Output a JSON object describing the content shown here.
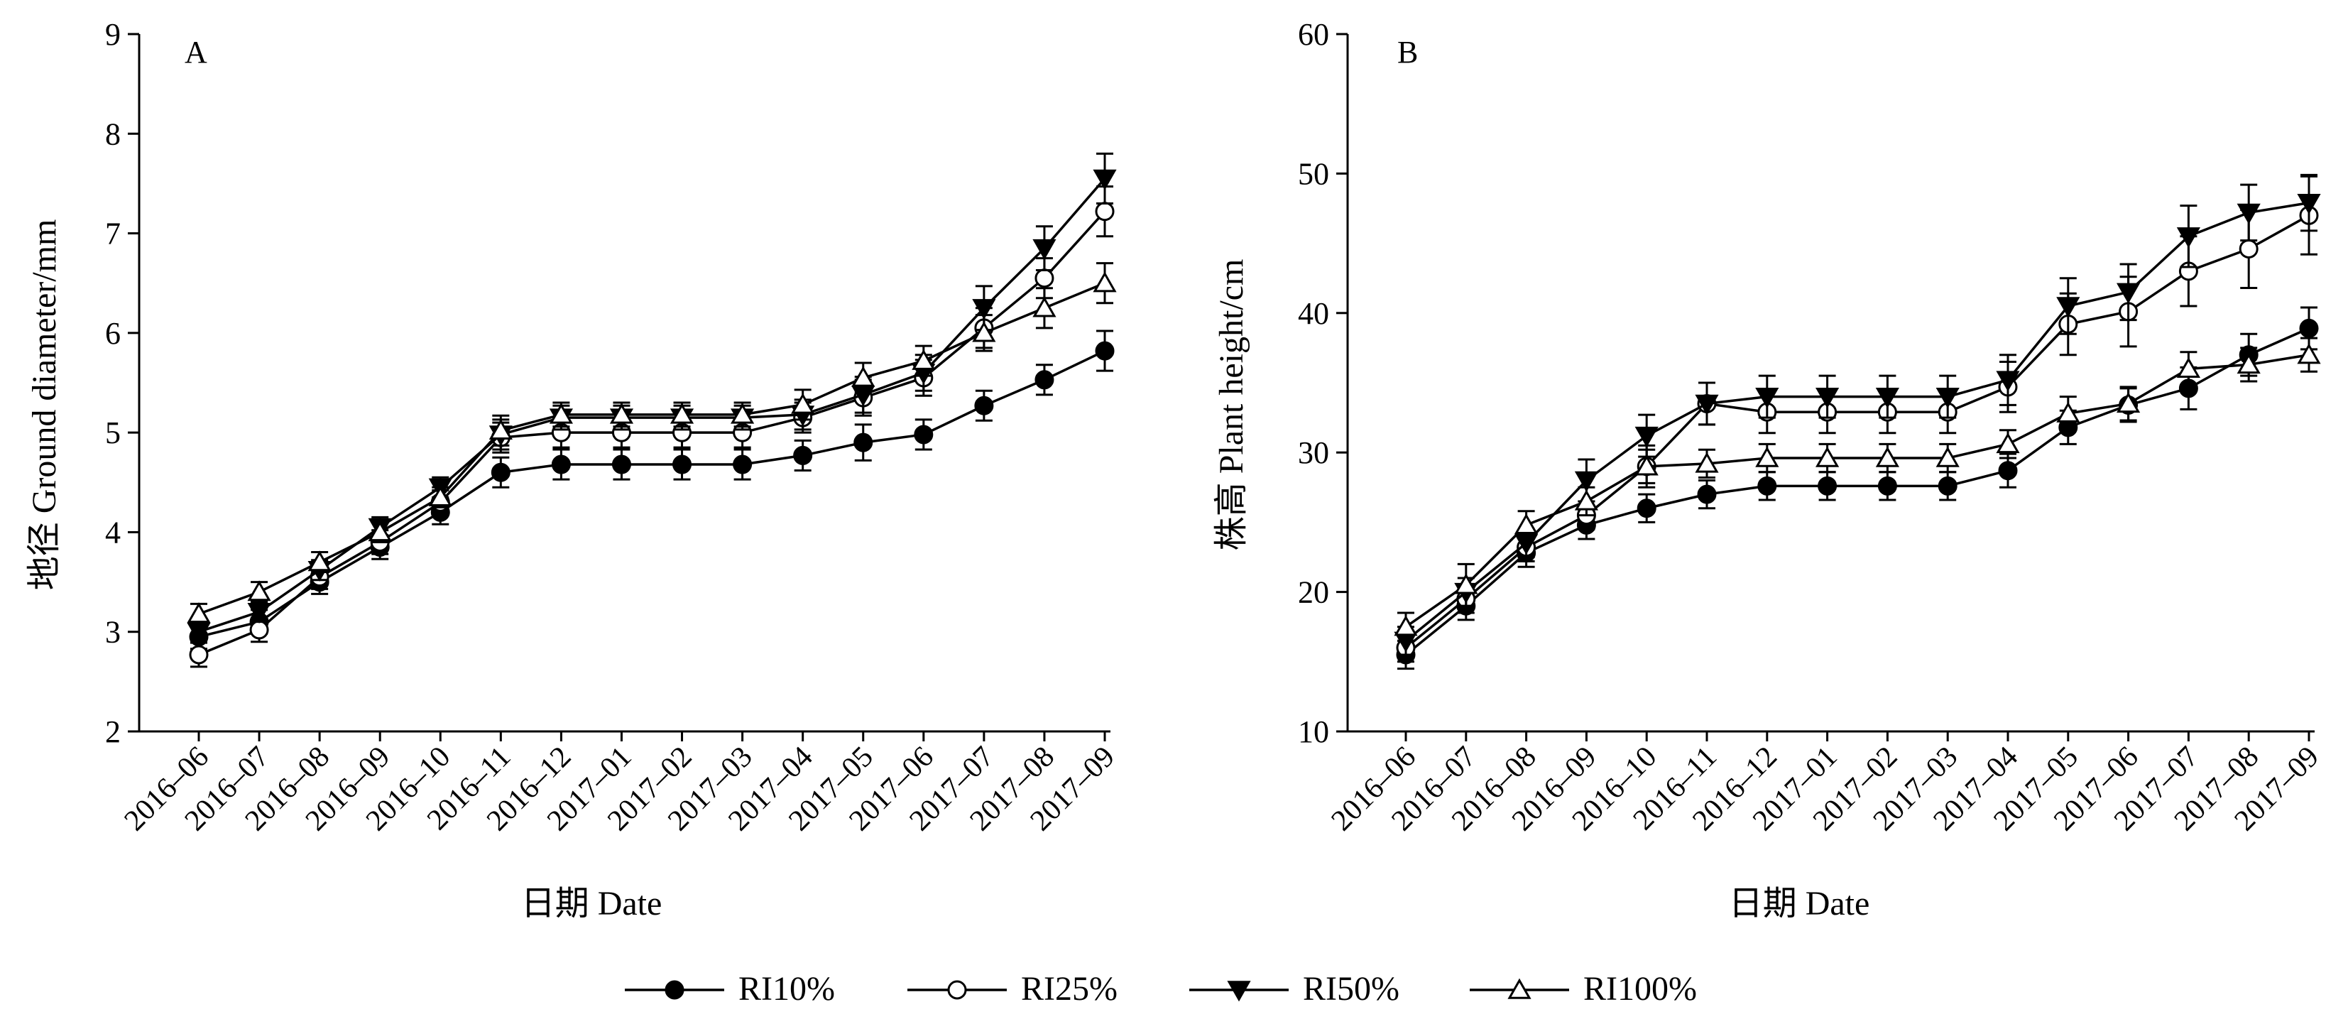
{
  "chart_data": [
    {
      "panel_label": "A",
      "type": "line",
      "xlabel": "日期  Date",
      "ylabel": "地径 Ground diameter/mm",
      "ylim": [
        2,
        9
      ],
      "yticks": [
        2,
        3,
        4,
        5,
        6,
        7,
        8,
        9
      ],
      "categories": [
        "2016–06",
        "2016–07",
        "2016–08",
        "2016–09",
        "2016–10",
        "2016–11",
        "2016–12",
        "2017–01",
        "2017–02",
        "2017–03",
        "2017–04",
        "2017–05",
        "2017–06",
        "2017–07",
        "2017–08",
        "2017–09"
      ],
      "series": [
        {
          "name": "RI10%",
          "marker": "circle-filled",
          "values": [
            2.95,
            3.1,
            3.5,
            3.85,
            4.2,
            4.6,
            4.68,
            4.68,
            4.68,
            4.68,
            4.77,
            4.9,
            4.98,
            5.27,
            5.53,
            5.82
          ],
          "errors": [
            0.12,
            0.12,
            0.12,
            0.12,
            0.12,
            0.15,
            0.15,
            0.15,
            0.15,
            0.15,
            0.15,
            0.18,
            0.15,
            0.15,
            0.15,
            0.2
          ]
        },
        {
          "name": "RI25%",
          "marker": "circle-open",
          "values": [
            2.77,
            3.02,
            3.55,
            3.9,
            4.3,
            4.95,
            5.0,
            5.0,
            5.0,
            5.0,
            5.15,
            5.35,
            5.55,
            6.05,
            6.55,
            7.22
          ],
          "errors": [
            0.12,
            0.12,
            0.12,
            0.12,
            0.12,
            0.15,
            0.15,
            0.15,
            0.15,
            0.15,
            0.15,
            0.18,
            0.18,
            0.2,
            0.2,
            0.25
          ]
        },
        {
          "name": "RI50%",
          "marker": "triangle-down-filled",
          "values": [
            3.0,
            3.2,
            3.62,
            4.05,
            4.45,
            4.98,
            5.15,
            5.15,
            5.15,
            5.15,
            5.18,
            5.38,
            5.6,
            6.25,
            6.85,
            7.55
          ],
          "errors": [
            0.1,
            0.1,
            0.1,
            0.1,
            0.1,
            0.15,
            0.12,
            0.12,
            0.12,
            0.12,
            0.15,
            0.18,
            0.18,
            0.22,
            0.22,
            0.25
          ]
        },
        {
          "name": "RI100%",
          "marker": "triangle-up-open",
          "values": [
            3.18,
            3.4,
            3.7,
            4.0,
            4.35,
            5.02,
            5.18,
            5.18,
            5.18,
            5.18,
            5.28,
            5.55,
            5.72,
            6.0,
            6.25,
            6.5
          ],
          "errors": [
            0.1,
            0.1,
            0.1,
            0.1,
            0.1,
            0.15,
            0.12,
            0.12,
            0.12,
            0.12,
            0.15,
            0.15,
            0.15,
            0.18,
            0.2,
            0.2
          ]
        }
      ]
    },
    {
      "panel_label": "B",
      "type": "line",
      "xlabel": "日期  Date",
      "ylabel": "株高 Plant height/cm",
      "ylim": [
        10,
        60
      ],
      "yticks": [
        10,
        20,
        30,
        40,
        50,
        60
      ],
      "categories": [
        "2016–06",
        "2016–07",
        "2016–08",
        "2016–09",
        "2016–10",
        "2016–11",
        "2016–12",
        "2017–01",
        "2017–02",
        "2017–03",
        "2017–04",
        "2017–05",
        "2017–06",
        "2017–07",
        "2017–08",
        "2017–09"
      ],
      "series": [
        {
          "name": "RI10%",
          "marker": "circle-filled",
          "values": [
            15.5,
            19.0,
            22.8,
            24.8,
            26.0,
            27.0,
            27.6,
            27.6,
            27.6,
            27.6,
            28.7,
            31.8,
            33.4,
            34.6,
            37.0,
            38.9
          ],
          "errors": [
            1.0,
            1.0,
            1.0,
            1.0,
            1.0,
            1.0,
            1.0,
            1.0,
            1.0,
            1.0,
            1.2,
            1.2,
            1.2,
            1.5,
            1.5,
            1.5
          ]
        },
        {
          "name": "RI25%",
          "marker": "circle-open",
          "values": [
            16.0,
            19.5,
            23.2,
            25.5,
            29.0,
            33.5,
            32.9,
            32.9,
            32.9,
            32.9,
            34.7,
            39.2,
            40.1,
            43.0,
            44.6,
            47.0
          ],
          "errors": [
            1.0,
            1.0,
            1.0,
            1.0,
            1.5,
            1.5,
            1.5,
            1.5,
            1.5,
            1.5,
            1.8,
            2.2,
            2.5,
            2.5,
            2.8,
            2.8
          ]
        },
        {
          "name": "RI50%",
          "marker": "triangle-down-filled",
          "values": [
            16.5,
            20.0,
            23.5,
            28.0,
            31.2,
            33.5,
            34.0,
            34.0,
            34.0,
            34.0,
            35.2,
            40.5,
            41.5,
            45.5,
            47.2,
            47.9
          ],
          "errors": [
            1.0,
            1.0,
            1.0,
            1.5,
            1.5,
            1.5,
            1.5,
            1.5,
            1.5,
            1.5,
            1.8,
            2.0,
            2.0,
            2.2,
            2.0,
            2.0
          ]
        },
        {
          "name": "RI100%",
          "marker": "triangle-up-open",
          "values": [
            17.5,
            20.5,
            24.8,
            26.5,
            29.0,
            29.2,
            29.6,
            29.6,
            29.6,
            29.6,
            30.6,
            32.8,
            33.5,
            36.0,
            36.3,
            37.0
          ],
          "errors": [
            1.0,
            1.5,
            1.0,
            1.0,
            1.2,
            1.0,
            1.0,
            1.0,
            1.0,
            1.0,
            1.0,
            1.2,
            1.2,
            1.2,
            1.2,
            1.2
          ]
        }
      ]
    }
  ],
  "legend": {
    "placement": "bottom-center",
    "items": [
      {
        "label": "RI10%",
        "marker": "circle-filled"
      },
      {
        "label": "RI25%",
        "marker": "circle-open"
      },
      {
        "label": "RI50%",
        "marker": "triangle-down-filled"
      },
      {
        "label": "RI100%",
        "marker": "triangle-up-open"
      }
    ]
  }
}
